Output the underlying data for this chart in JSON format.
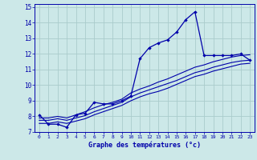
{
  "xlabel": "Graphe des températures (°c)",
  "bg_color": "#cce8e8",
  "grid_color": "#aacccc",
  "line_color": "#0000aa",
  "xlim": [
    -0.5,
    23.5
  ],
  "ylim": [
    7,
    15.2
  ],
  "yticks": [
    7,
    8,
    9,
    10,
    11,
    12,
    13,
    14,
    15
  ],
  "xticks": [
    0,
    1,
    2,
    3,
    4,
    5,
    6,
    7,
    8,
    9,
    10,
    11,
    12,
    13,
    14,
    15,
    16,
    17,
    18,
    19,
    20,
    21,
    22,
    23
  ],
  "hours": [
    0,
    1,
    2,
    3,
    4,
    5,
    6,
    7,
    8,
    9,
    10,
    11,
    12,
    13,
    14,
    15,
    16,
    17,
    18,
    19,
    20,
    21,
    22,
    23
  ],
  "main_temps": [
    8.1,
    7.5,
    7.5,
    7.3,
    8.1,
    8.2,
    8.9,
    8.8,
    8.8,
    9.0,
    9.3,
    11.7,
    12.4,
    12.7,
    12.9,
    13.4,
    14.2,
    14.7,
    11.9,
    11.9,
    11.9,
    11.9,
    12.0,
    11.6
  ],
  "trend1": [
    7.9,
    7.9,
    8.0,
    7.9,
    8.1,
    8.3,
    8.55,
    8.75,
    8.9,
    9.1,
    9.5,
    9.75,
    9.95,
    10.2,
    10.4,
    10.65,
    10.9,
    11.15,
    11.3,
    11.5,
    11.65,
    11.8,
    11.9,
    11.95
  ],
  "trend2": [
    7.75,
    7.75,
    7.85,
    7.75,
    7.9,
    8.05,
    8.3,
    8.5,
    8.7,
    8.9,
    9.25,
    9.5,
    9.7,
    9.9,
    10.1,
    10.3,
    10.55,
    10.8,
    10.95,
    11.15,
    11.3,
    11.45,
    11.55,
    11.6
  ],
  "trend3": [
    7.55,
    7.55,
    7.65,
    7.55,
    7.7,
    7.85,
    8.1,
    8.3,
    8.5,
    8.7,
    9.0,
    9.25,
    9.45,
    9.6,
    9.8,
    10.05,
    10.3,
    10.55,
    10.7,
    10.9,
    11.05,
    11.2,
    11.35,
    11.4
  ]
}
